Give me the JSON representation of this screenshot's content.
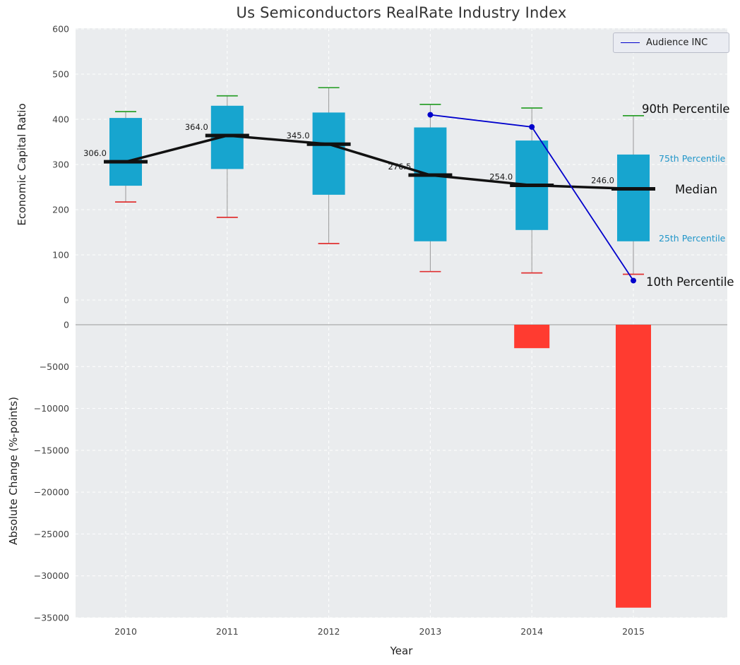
{
  "title": "Us Semiconductors RealRate Industry Index",
  "colors": {
    "box_fill": "#17a5cf",
    "median": "#111111",
    "whisker": "#999999",
    "cap_top": "#2ca02c",
    "cap_bottom": "#e03131",
    "series_line": "#0000cc",
    "bar_negative": "#ff3b30",
    "plot_bg": "#eaecee",
    "grid": "#ffffff",
    "zero_line": "#aaaaaa",
    "tick_text": "#424242",
    "percentile_text": "#2196c9"
  },
  "legend": {
    "items": [
      {
        "label": "Audience INC",
        "color": "#0000cc"
      }
    ]
  },
  "axes": {
    "top": {
      "ylabel": "Economic Capital Ratio",
      "yticks": [
        600,
        500,
        400,
        300,
        200,
        100,
        0
      ],
      "ylim": [
        0,
        600
      ]
    },
    "bottom": {
      "ylabel": "Absolute Change (%-points)",
      "xlabel": "Year",
      "yticks": [
        0,
        -5000,
        -10000,
        -15000,
        -20000,
        -25000,
        -30000,
        -35000
      ],
      "ylim": [
        -35000,
        0
      ]
    },
    "x": {
      "categories": [
        "2010",
        "2011",
        "2012",
        "2013",
        "2014",
        "2015"
      ]
    }
  },
  "annotations": {
    "p90": "90th Percentile",
    "p75": "75th Percentile",
    "median": "Median",
    "p25": "25th Percentile",
    "p10": "10th Percentile"
  },
  "chart_data": [
    {
      "type": "boxplot",
      "panel": "top",
      "title": "Us Semiconductors RealRate Industry Index",
      "ylabel": "Economic Capital Ratio",
      "ylim": [
        0,
        600
      ],
      "grid": true,
      "legend_position": "upper right",
      "categories": [
        "2010",
        "2011",
        "2012",
        "2013",
        "2014",
        "2015"
      ],
      "boxes": [
        {
          "category": "2010",
          "p10": 217,
          "p25": 253,
          "median": 306.0,
          "p75": 403,
          "p90": 417,
          "median_label": "306.0"
        },
        {
          "category": "2011",
          "p10": 183,
          "p25": 290,
          "median": 364.0,
          "p75": 430,
          "p90": 452,
          "median_label": "364.0"
        },
        {
          "category": "2012",
          "p10": 125,
          "p25": 233,
          "median": 345.0,
          "p75": 415,
          "p90": 470,
          "median_label": "345.0"
        },
        {
          "category": "2013",
          "p10": 63,
          "p25": 130,
          "median": 276.5,
          "p75": 382,
          "p90": 433,
          "median_label": "276.5"
        },
        {
          "category": "2014",
          "p10": 60,
          "p25": 155,
          "median": 254.0,
          "p75": 353,
          "p90": 425,
          "median_label": "254.0"
        },
        {
          "category": "2015",
          "p10": 57,
          "p25": 130,
          "median": 246.0,
          "p75": 322,
          "p90": 408,
          "median_label": "246.0"
        }
      ],
      "series": [
        {
          "name": "Audience INC",
          "x": [
            "2013",
            "2014",
            "2015"
          ],
          "y": [
            410,
            383,
            43
          ],
          "color": "#0000cc",
          "marker": "circle"
        }
      ]
    },
    {
      "type": "bar",
      "panel": "bottom",
      "ylabel": "Absolute Change (%-points)",
      "xlabel": "Year",
      "ylim": [
        -35000,
        0
      ],
      "grid": true,
      "categories": [
        "2010",
        "2011",
        "2012",
        "2013",
        "2014",
        "2015"
      ],
      "values": [
        0,
        0,
        0,
        0,
        -2800,
        -33800
      ],
      "color": "#ff3b30"
    }
  ]
}
